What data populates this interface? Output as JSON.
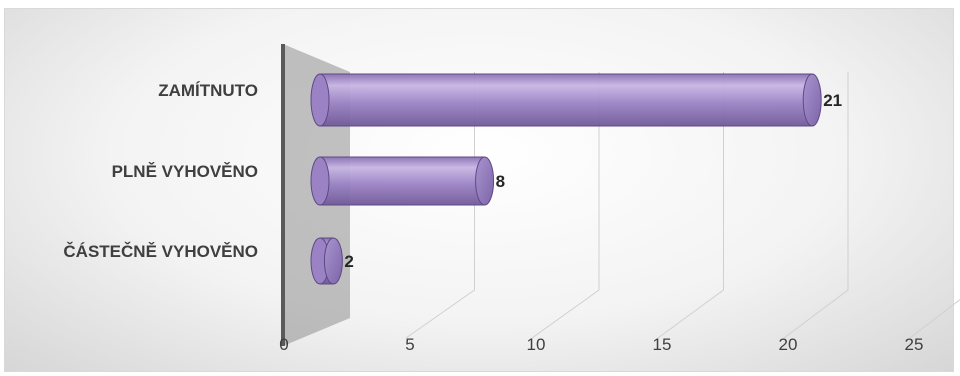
{
  "chart_data": {
    "type": "bar",
    "orientation": "horizontal",
    "style": "3d-cylinder",
    "categories": [
      "ZAMÍTNUTO",
      "PLNĚ VYHOVĚNO",
      "ČÁSTEČNĚ VYHOVĚNO"
    ],
    "values": [
      21,
      8,
      2
    ],
    "xlim": [
      0,
      25
    ],
    "x_ticks": [
      0,
      5,
      10,
      15,
      20,
      25
    ],
    "grid": true,
    "legend": "none",
    "bar_color": "#9b82c4",
    "bar_stroke": "#5e4a85",
    "data_labels": true
  }
}
